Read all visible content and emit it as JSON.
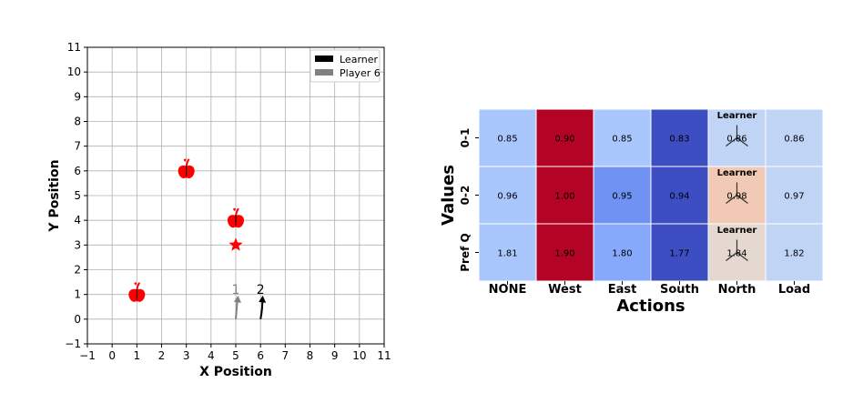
{
  "chart_data": [
    {
      "type": "scatter",
      "xlabel": "X Position",
      "ylabel": "Y Position",
      "xlim": [
        -1,
        11
      ],
      "ylim": [
        -1,
        11
      ],
      "xticks": [
        "−1",
        "0",
        "1",
        "2",
        "3",
        "4",
        "5",
        "6",
        "7",
        "8",
        "9",
        "10",
        "11"
      ],
      "yticks": [
        "−1",
        "0",
        "1",
        "2",
        "3",
        "4",
        "5",
        "6",
        "7",
        "8",
        "9",
        "10",
        "11"
      ],
      "grid": true,
      "legend": {
        "placement": "top-right",
        "entries": [
          {
            "label": "Learner",
            "color": "#000000"
          },
          {
            "label": "Player 6",
            "color": "#808080"
          }
        ]
      },
      "apples": [
        {
          "x": 1,
          "y": 1
        },
        {
          "x": 3,
          "y": 6
        },
        {
          "x": 5,
          "y": 4
        }
      ],
      "star": {
        "x": 5,
        "y": 3,
        "color": "#ff0000"
      },
      "agents": [
        {
          "label": "1",
          "x": 5,
          "y": 0,
          "direction": "north",
          "color": "#808080"
        },
        {
          "label": "2",
          "x": 6,
          "y": 0,
          "direction": "north",
          "color": "#000000"
        }
      ]
    },
    {
      "type": "heatmap",
      "xlabel": "Actions",
      "ylabel": "Values",
      "columns": [
        "NONE",
        "West",
        "East",
        "South",
        "North",
        "Load"
      ],
      "rows": [
        "0-1",
        "0-2",
        "Pref Q"
      ],
      "values": [
        [
          0.85,
          0.9,
          0.85,
          0.83,
          0.86,
          0.86
        ],
        [
          0.96,
          1.0,
          0.95,
          0.94,
          0.98,
          0.97
        ],
        [
          1.81,
          1.9,
          1.8,
          1.77,
          1.84,
          1.82
        ]
      ],
      "labels": [
        [
          "0.85",
          "0.90",
          "0.85",
          "0.83",
          "0.86",
          "0.86"
        ],
        [
          "0.96",
          "1.00",
          "0.95",
          "0.94",
          "0.98",
          "0.97"
        ],
        [
          "1.81",
          "1.90",
          "1.80",
          "1.77",
          "1.84",
          "1.82"
        ]
      ],
      "colors": [
        [
          "#aac7fd",
          "#b40426",
          "#aac7fd",
          "#3c4ec2",
          "#c0d4f5",
          "#c0d4f5"
        ],
        [
          "#aac7fd",
          "#b40426",
          "#6f92f3",
          "#3c4ec2",
          "#f2c9b4",
          "#c0d4f5"
        ],
        [
          "#aac7fd",
          "#b40426",
          "#86a9fc",
          "#3c4ec2",
          "#e5d8d1",
          "#c0d4f5"
        ]
      ],
      "marker": {
        "label": "Learner",
        "column": "North"
      }
    }
  ]
}
